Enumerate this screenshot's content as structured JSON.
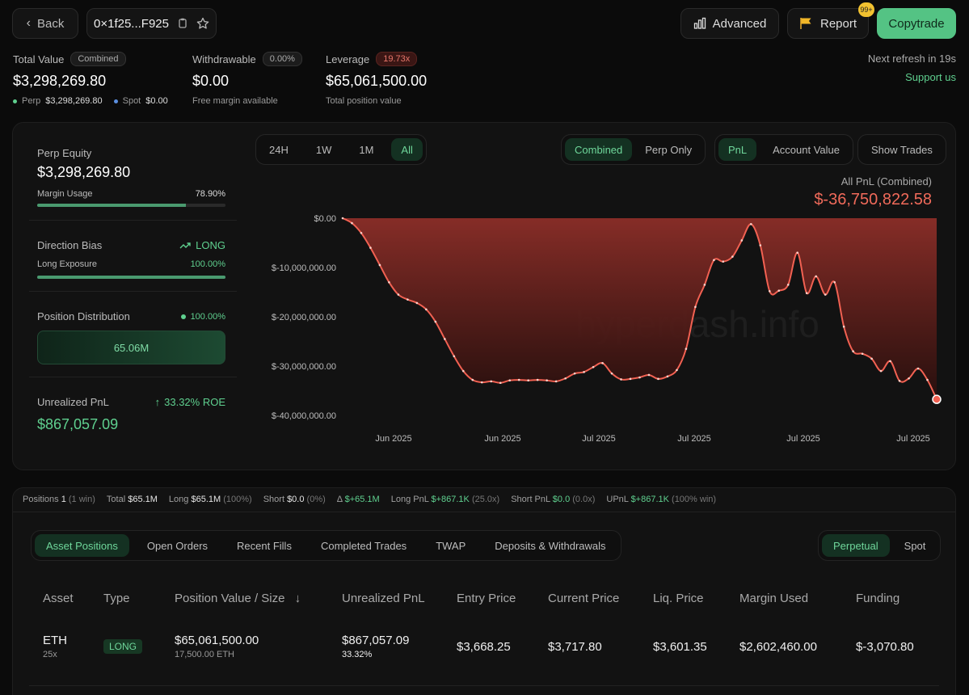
{
  "header": {
    "back_label": "Back",
    "address": "0×1f25...F925",
    "advanced_label": "Advanced",
    "report_label": "Report",
    "report_badge": "99+",
    "copytrade_label": "Copytrade",
    "next_refresh": "Next refresh in 19s",
    "support_label": "Support us"
  },
  "summary": {
    "total_value_label": "Total Value",
    "total_value_badge": "Combined",
    "total_value": "$3,298,269.80",
    "perp_label": "Perp",
    "perp_value": "$3,298,269.80",
    "spot_label": "Spot",
    "spot_value": "$0.00",
    "withdrawable_label": "Withdrawable",
    "withdrawable_badge": "0.00%",
    "withdrawable_value": "$0.00",
    "withdrawable_sub": "Free margin available",
    "leverage_label": "Leverage",
    "leverage_badge": "19.73x",
    "leverage_value": "$65,061,500.00",
    "leverage_sub": "Total position value"
  },
  "left_panel": {
    "perp_equity_label": "Perp Equity",
    "perp_equity_value": "$3,298,269.80",
    "margin_usage_label": "Margin Usage",
    "margin_usage_value": "78.90%",
    "margin_usage_fraction": 0.789,
    "direction_label": "Direction Bias",
    "direction_value": "LONG",
    "long_exposure_label": "Long Exposure",
    "long_exposure_value": "100.00%",
    "long_exposure_fraction": 1.0,
    "distribution_label": "Position Distribution",
    "distribution_pct": "100.00%",
    "distribution_block": "65.06M",
    "upnl_label": "Unrealized PnL",
    "upnl_roe": "33.32% ROE",
    "upnl_value": "$867,057.09"
  },
  "chart_controls": {
    "ranges": [
      "24H",
      "1W",
      "1M",
      "All"
    ],
    "active_range": "All",
    "scope": [
      "Combined",
      "Perp Only"
    ],
    "metric": [
      "PnL",
      "Account Value"
    ],
    "show_trades": "Show Trades"
  },
  "chart_data": {
    "type": "area",
    "title": "All PnL (Combined)",
    "value_label": "$-36,750,822.58",
    "watermark": "hyperdash.info",
    "yticks": [
      "$0.00",
      "$-10,000,000.00",
      "$-20,000,000.00",
      "$-30,000,000.00",
      "$-40,000,000.00"
    ],
    "ylim": [
      -40000000,
      0
    ],
    "xticks": [
      "Jun 2025",
      "Jun 2025",
      "Jul 2025",
      "Jul 2025",
      "Jul 2025",
      "Jul 2025"
    ],
    "series": [
      {
        "values": [
          0,
          -1000000,
          -3000000,
          -6000000,
          -9500000,
          -13000000,
          -15500000,
          -16500000,
          -17200000,
          -18500000,
          -21000000,
          -24500000,
          -28000000,
          -31000000,
          -32800000,
          -33300000,
          -33100000,
          -33400000,
          -32900000,
          -32800000,
          -32900000,
          -32800000,
          -32900000,
          -33100000,
          -32500000,
          -31500000,
          -31200000,
          -30200000,
          -29400000,
          -31500000,
          -32700000,
          -32600000,
          -32300000,
          -31800000,
          -32600000,
          -32100000,
          -30800000,
          -26500000,
          -18000000,
          -13500000,
          -8500000,
          -8800000,
          -7800000,
          -4500000,
          -1200000,
          -5500000,
          -14800000,
          -14700000,
          -13500000,
          -7000000,
          -15200000,
          -11800000,
          -15500000,
          -13000000,
          -22000000,
          -27000000,
          -27500000,
          -28500000,
          -31000000,
          -29000000,
          -33000000,
          -32500000,
          -30500000,
          -32800000,
          -36750822
        ]
      }
    ]
  },
  "stats": {
    "positions_label": "Positions",
    "positions_value": "1",
    "positions_note": "(1 win)",
    "total_label": "Total",
    "total_value": "$65.1M",
    "long_label": "Long",
    "long_value": "$65.1M",
    "long_note": "(100%)",
    "short_label": "Short",
    "short_value": "$0.0",
    "short_note": "(0%)",
    "delta_label": "Δ",
    "delta_value": "$+65.1M",
    "long_pnl_label": "Long PnL",
    "long_pnl_value": "$+867.1K",
    "long_pnl_note": "(25.0x)",
    "short_pnl_label": "Short PnL",
    "short_pnl_value": "$0.0",
    "short_pnl_note": "(0.0x)",
    "upnl_label": "UPnL",
    "upnl_value": "$+867.1K",
    "upnl_note": "(100% win)"
  },
  "tabs": {
    "items": [
      "Asset Positions",
      "Open Orders",
      "Recent Fills",
      "Completed Trades",
      "TWAP",
      "Deposits & Withdrawals"
    ],
    "market": [
      "Perpetual",
      "Spot"
    ]
  },
  "table": {
    "headers": [
      "Asset",
      "Type",
      "Position Value / Size",
      "Unrealized PnL",
      "Entry Price",
      "Current Price",
      "Liq. Price",
      "Margin Used",
      "Funding"
    ],
    "rows": [
      {
        "asset": "ETH",
        "leverage": "25x",
        "type": "LONG",
        "value": "$65,061,500.00",
        "size": "17,500.00 ETH",
        "upnl": "$867,057.09",
        "upnl_pct": "33.32%",
        "entry": "$3,668.25",
        "current": "$3,717.80",
        "liq": "$3,601.35",
        "margin": "$2,602,460.00",
        "funding": "$-3,070.80"
      }
    ]
  }
}
